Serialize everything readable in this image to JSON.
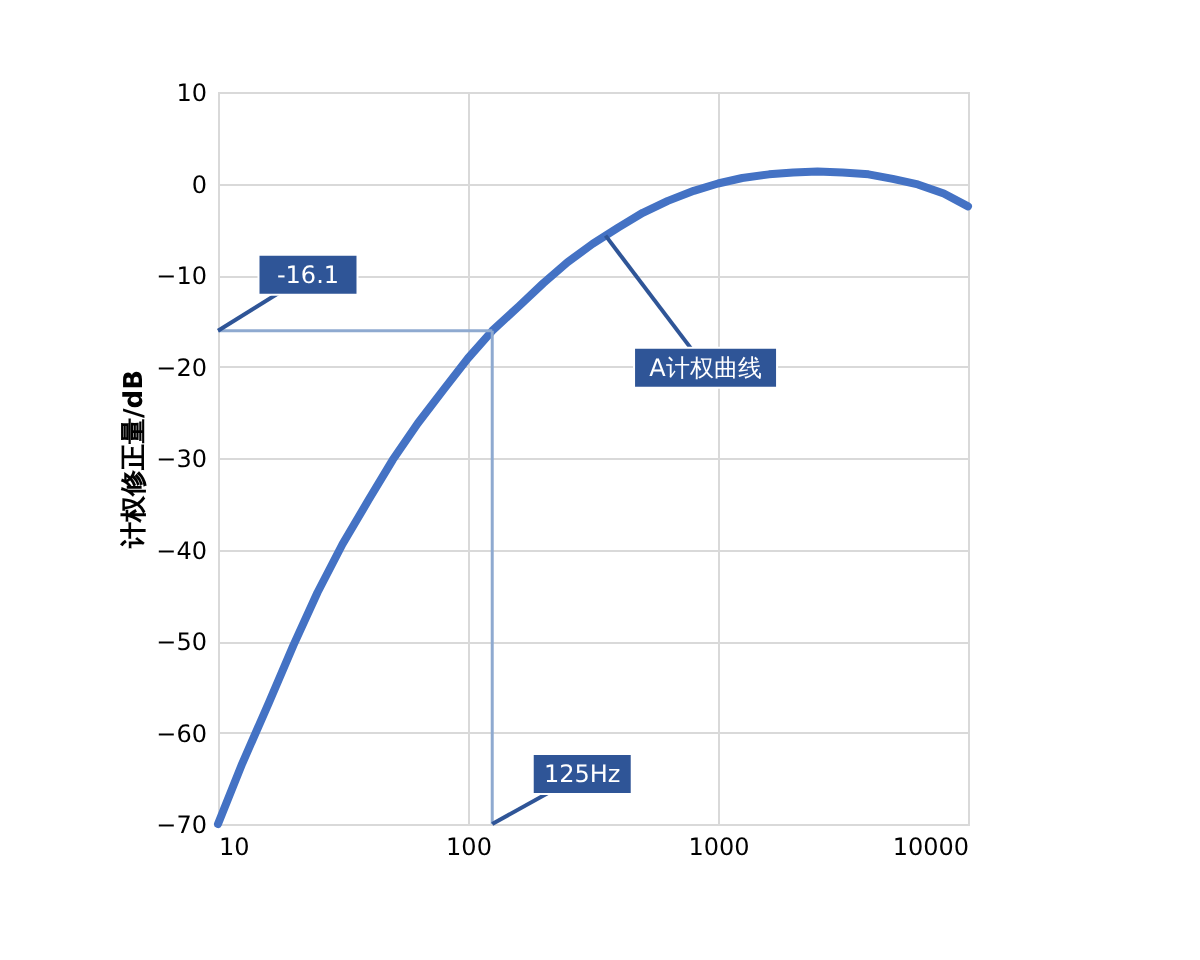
{
  "chart_data": {
    "type": "line",
    "ylabel": "计权修正量/dB",
    "log": "x",
    "x": [
      10,
      12.5,
      16,
      20,
      25,
      31.5,
      40,
      50,
      63,
      80,
      100,
      125,
      160,
      200,
      250,
      315,
      400,
      500,
      630,
      800,
      1000,
      1250,
      1600,
      2000,
      2500,
      3150,
      4000,
      5000,
      6300,
      8000,
      10000
    ],
    "series": [
      {
        "color": "#4472c4",
        "values": [
          -70,
          -63.4,
          -56.7,
          -50.5,
          -44.7,
          -39.4,
          -34.6,
          -30.2,
          -26.2,
          -22.5,
          -19.1,
          -16.1,
          -13.4,
          -10.9,
          -8.6,
          -6.6,
          -4.8,
          -3.2,
          -1.9,
          -0.8,
          0,
          0.6,
          1.0,
          1.2,
          1.3,
          1.2,
          1.0,
          0.5,
          -0.1,
          -1.1,
          -2.5
        ]
      }
    ],
    "xlim": [
      10,
      10000
    ],
    "xticks": [
      10,
      100,
      1000,
      10000
    ],
    "ylim": [
      -70,
      10
    ],
    "yticks": [
      -70,
      -60,
      -50,
      -40,
      -30,
      -20,
      -10,
      0,
      10
    ],
    "grid": true,
    "marker": "none",
    "line_style": "solid",
    "ref_lines": [
      {
        "axis": "x",
        "value": 125,
        "color": "#8faad0"
      },
      {
        "axis": "y",
        "value": -16.1,
        "color": "#8faad0"
      }
    ],
    "annotations": [
      {
        "text": "-16.1",
        "x": 10,
        "y": -16.1
      },
      {
        "text": "125Hz",
        "x": 125,
        "y": -70
      },
      {
        "text": "A计权曲线",
        "x": 355,
        "y": -5.7
      }
    ]
  }
}
